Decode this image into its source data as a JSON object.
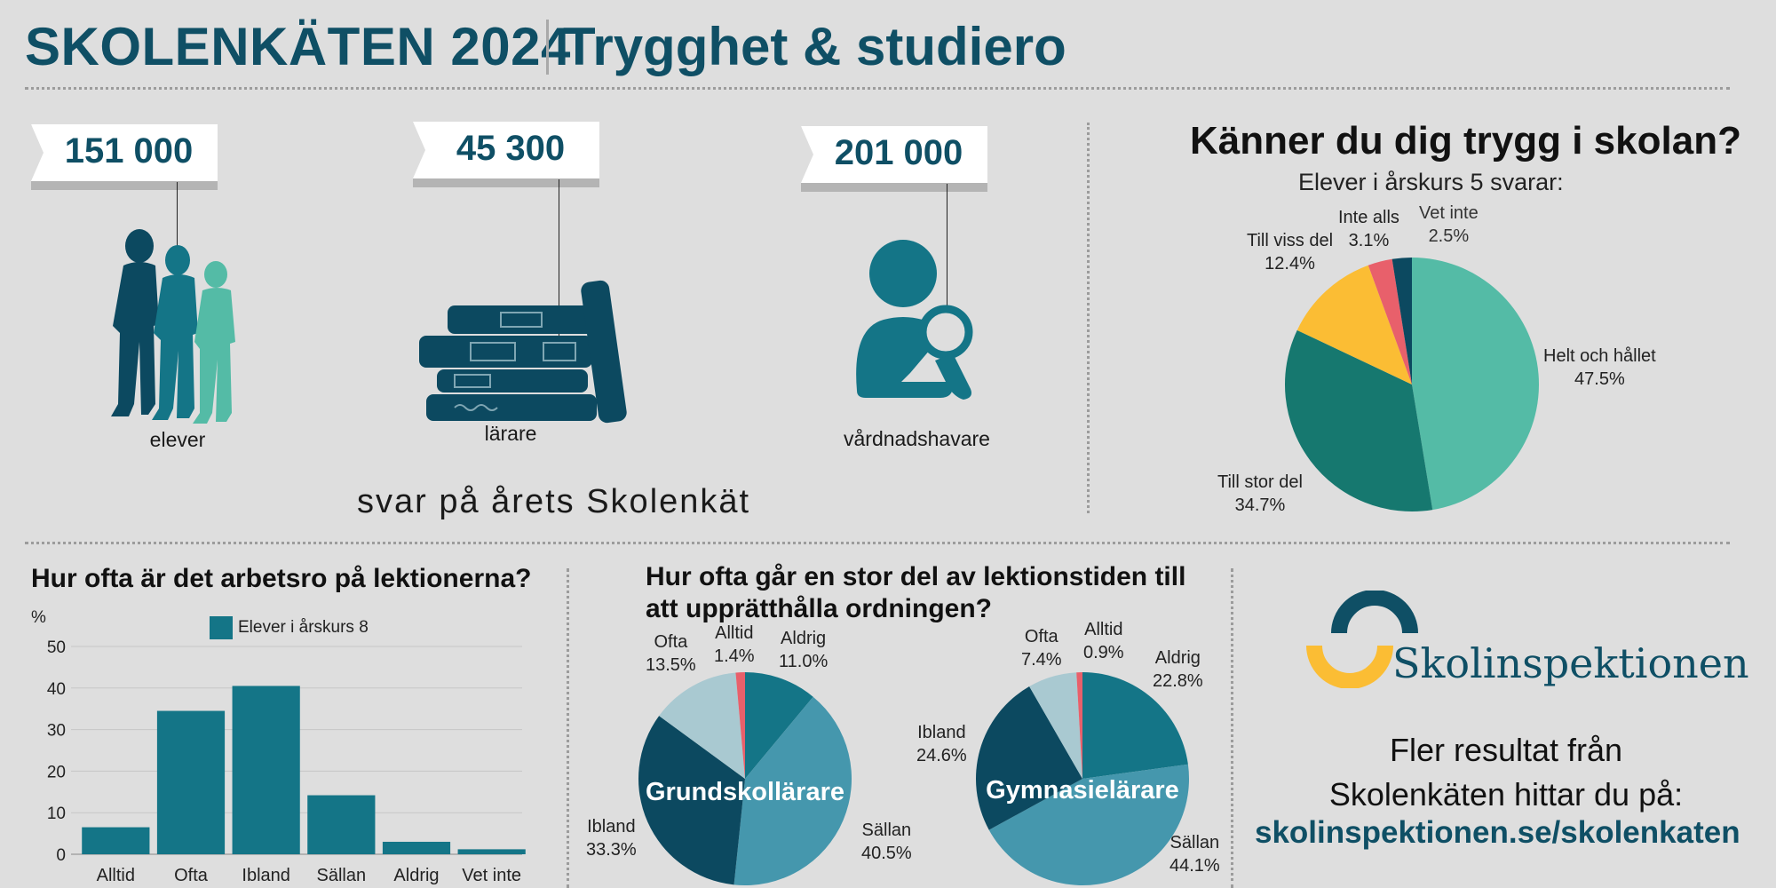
{
  "header": {
    "title": "SKOLENKÄTEN 2024",
    "subtitle": "Trygghet & studiero"
  },
  "respondents": {
    "groups": [
      {
        "count": "151 000",
        "label": "elever",
        "icon": "students-icon"
      },
      {
        "count": "45 300",
        "label": "lärare",
        "icon": "books-icon"
      },
      {
        "count": "201 000",
        "label": "vårdnadshavare",
        "icon": "guardian-icon"
      }
    ],
    "tagline": "svar på årets Skolenkät"
  },
  "colors": {
    "dark_teal": "#0f4f65",
    "teal": "#147587",
    "mid_teal": "#16786f",
    "mint": "#54bba6",
    "yellow": "#fbbd34",
    "red": "#e8606b",
    "light_blue": "#a9c9d1",
    "steel": "#4597ad",
    "navy": "#0c4960"
  },
  "safety_pie": {
    "question": "Känner du dig trygg i skolan?",
    "subtitle": "Elever i årskurs 5 svarar:"
  },
  "bar_chart": {
    "title": "Hur ofta är det arbetsro på lektionerna?",
    "unit": "%",
    "legend": "Elever i årskurs 8"
  },
  "order_pies": {
    "title": "Hur ofta går en stor del av lektionstiden till att upprätthålla ordningen?"
  },
  "footer": {
    "logo_text": "Skolinspektionen",
    "cta_line1": "Fler resultat från",
    "cta_line2": "Skolenkäten hittar du på:",
    "link": "skolinspektionen.se/skolenkaten"
  },
  "chart_data": [
    {
      "type": "pie",
      "title": "Känner du dig trygg i skolan?",
      "subtitle": "Elever i årskurs 5 svarar:",
      "slices": [
        {
          "label": "Helt och hållet",
          "value": 47.5,
          "display": "47.5%",
          "color": "#54bba6"
        },
        {
          "label": "Till stor del",
          "value": 34.7,
          "display": "34.7%",
          "color": "#16786f"
        },
        {
          "label": "Till viss del",
          "value": 12.4,
          "display": "12.4%",
          "color": "#fbbd34"
        },
        {
          "label": "Inte alls",
          "value": 3.1,
          "display": "3.1%",
          "color": "#e8606b"
        },
        {
          "label": "Vet inte",
          "value": 2.5,
          "display": "2.5%",
          "color": "#0c4960"
        }
      ]
    },
    {
      "type": "bar",
      "title": "Hur ofta är det arbetsro på lektionerna?",
      "ylabel": "%",
      "ylim": [
        0,
        50
      ],
      "yticks": [
        0,
        10,
        20,
        30,
        40,
        50
      ],
      "grid": true,
      "legend_position": "top",
      "categories": [
        "Alltid",
        "Ofta",
        "Ibland",
        "Sällan",
        "Aldrig",
        "Vet inte"
      ],
      "series": [
        {
          "name": "Elever i årskurs 8",
          "values": [
            6.5,
            34.5,
            40.5,
            14.2,
            3.0,
            1.2
          ],
          "color": "#147587"
        }
      ]
    },
    {
      "type": "pie",
      "title": "Grundskollärare",
      "slices": [
        {
          "label": "Aldrig",
          "value": 11.0,
          "display": "11.0%",
          "color": "#147587"
        },
        {
          "label": "Sällan",
          "value": 40.5,
          "display": "40.5%",
          "color": "#4597ad"
        },
        {
          "label": "Ibland",
          "value": 33.3,
          "display": "33.3%",
          "color": "#0c4960"
        },
        {
          "label": "Ofta",
          "value": 13.5,
          "display": "13.5%",
          "color": "#a9c9d1"
        },
        {
          "label": "Alltid",
          "value": 1.4,
          "display": "1.4%",
          "color": "#e8606b"
        }
      ]
    },
    {
      "type": "pie",
      "title": "Gymnasielärare",
      "slices": [
        {
          "label": "Aldrig",
          "value": 22.8,
          "display": "22.8%",
          "color": "#147587"
        },
        {
          "label": "Sällan",
          "value": 44.1,
          "display": "44.1%",
          "color": "#4597ad"
        },
        {
          "label": "Ibland",
          "value": 24.6,
          "display": "24.6%",
          "color": "#0c4960"
        },
        {
          "label": "Ofta",
          "value": 7.4,
          "display": "7.4%",
          "color": "#a9c9d1"
        },
        {
          "label": "Alltid",
          "value": 0.9,
          "display": "0.9%",
          "color": "#e8606b"
        }
      ]
    }
  ]
}
